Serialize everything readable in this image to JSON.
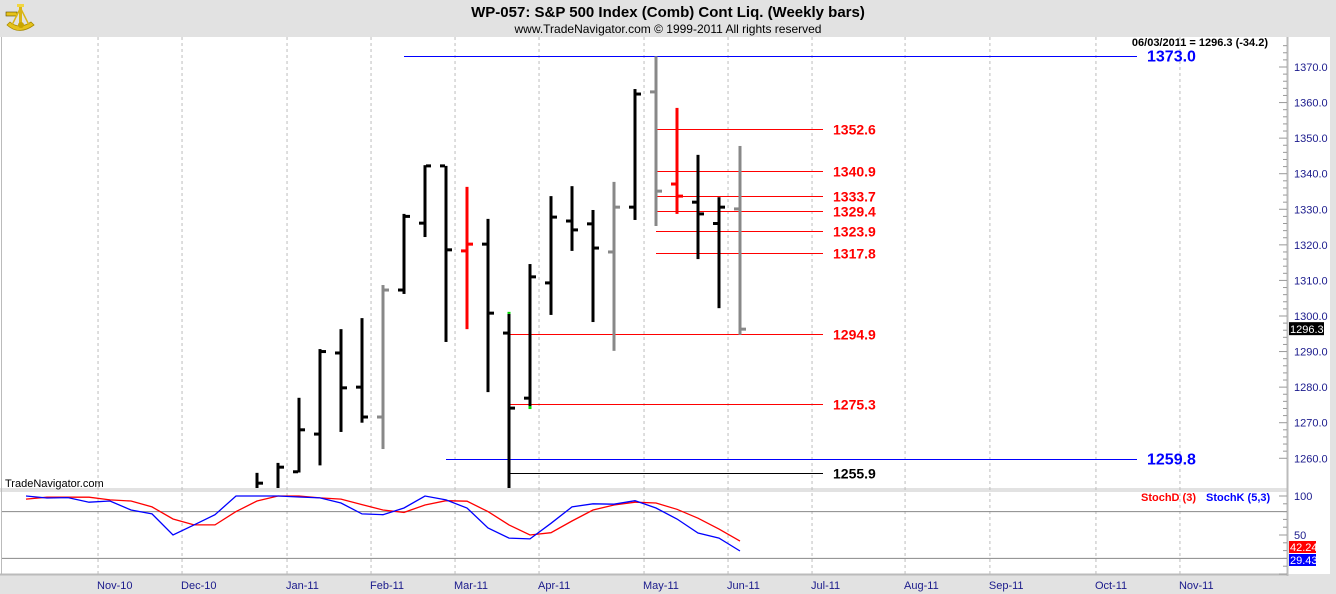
{
  "header": {
    "title": "WP-057:  S&P 500 Index (Comb) Cont Liq.  (Weekly bars)",
    "subtitle": "www.TradeNavigator.com © 1999-2011 All rights reserved",
    "info": "06/03/2011 = 1296.3 (-34.2)",
    "watermark": "TradeNavigator.com"
  },
  "colors": {
    "black": "#000000",
    "gray": "#888888",
    "red": "#ff0000",
    "blue": "#0000ff",
    "green": "#00dd00",
    "axis_text": "#1a1a8c",
    "panel_bg": "#e2e2e2"
  },
  "chart_data": [
    {
      "type": "ohlc",
      "title": "WP-057:  S&P 500 Index (Comb) Cont Liq.  (Weekly bars)",
      "x_unit": "week index",
      "ylim": [
        1249,
        1378
      ],
      "y_ticks": [
        "1370.0",
        "1360.0",
        "1350.0",
        "1340.0",
        "1330.0",
        "1320.0",
        "1310.0",
        "1300.0",
        "1290.0",
        "1280.0",
        "1270.0",
        "1260.0"
      ],
      "y_tick_values": [
        1370,
        1360,
        1350,
        1340,
        1330,
        1320,
        1310,
        1300,
        1290,
        1280,
        1270,
        1260
      ],
      "last_price": {
        "value": 1296.3,
        "label": "1296.3"
      },
      "x_ticks": [
        {
          "label": "Nov-10",
          "week": 3.43
        },
        {
          "label": "Dec-10",
          "week": 7.43
        },
        {
          "label": "Jan-11",
          "week": 12.43
        },
        {
          "label": "Feb-11",
          "week": 16.43
        },
        {
          "label": "Mar-11",
          "week": 20.43
        },
        {
          "label": "Apr-11",
          "week": 24.43
        },
        {
          "label": "May-11",
          "week": 29.43
        },
        {
          "label": "Jun-11",
          "week": 33.43
        },
        {
          "label": "Jul-11",
          "week": 37.43
        },
        {
          "label": "Aug-11",
          "week": 41.86
        },
        {
          "label": "Sep-11",
          "week": 45.9
        },
        {
          "label": "Oct-11",
          "week": 50.95
        },
        {
          "label": "Nov-11",
          "week": 54.95
        }
      ],
      "bars": [
        {
          "week": 11,
          "o": null,
          "h": 1255.9,
          "l": 1250,
          "c": 1253.0,
          "color": "black"
        },
        {
          "week": 12,
          "o": null,
          "h": 1258.7,
          "l": 1250,
          "c": 1257.5,
          "color": "black"
        },
        {
          "week": 13,
          "o": 1256.2,
          "h": 1277.0,
          "l": 1256.0,
          "c": 1268.0,
          "color": "black"
        },
        {
          "week": 14,
          "o": 1266.8,
          "h": 1290.7,
          "l": 1258.0,
          "c": 1290.0,
          "color": "black"
        },
        {
          "week": 15,
          "o": 1289.6,
          "h": 1296.3,
          "l": 1267.4,
          "c": 1279.8,
          "color": "black"
        },
        {
          "week": 16,
          "o": 1280.0,
          "h": 1299.4,
          "l": 1270.0,
          "c": 1271.6,
          "color": "black"
        },
        {
          "week": 17,
          "o": 1271.6,
          "h": 1308.7,
          "l": 1262.6,
          "c": 1307.3,
          "color": "gray"
        },
        {
          "week": 18,
          "o": 1307.3,
          "h": 1328.7,
          "l": 1306.2,
          "c": 1328.0,
          "color": "black"
        },
        {
          "week": 19,
          "o": 1326.1,
          "h": 1342.4,
          "l": 1322.2,
          "c": 1342.2,
          "color": "black"
        },
        {
          "week": 20,
          "o": 1342.2,
          "h": 1342.2,
          "l": 1292.7,
          "c": 1318.6,
          "color": "black"
        },
        {
          "week": 21,
          "o": 1318.3,
          "h": 1336.3,
          "l": 1296.3,
          "c": 1320.2,
          "color": "red"
        },
        {
          "week": 22,
          "o": 1320.2,
          "h": 1327.3,
          "l": 1278.6,
          "c": 1300.8,
          "color": "black"
        },
        {
          "week": 23,
          "o": 1295.2,
          "h": 1300.6,
          "l": 1251.6,
          "c": 1274.1,
          "color": "black",
          "marker": "high"
        },
        {
          "week": 24,
          "o": 1276.9,
          "h": 1314.6,
          "l": 1274.4,
          "c": 1311.0,
          "color": "black",
          "marker": "low"
        },
        {
          "week": 25,
          "o": 1309.3,
          "h": 1333.7,
          "l": 1300.3,
          "c": 1327.8,
          "color": "black"
        },
        {
          "week": 26,
          "o": 1326.7,
          "h": 1336.5,
          "l": 1318.3,
          "c": 1324.2,
          "color": "black"
        },
        {
          "week": 27,
          "o": 1325.9,
          "h": 1329.8,
          "l": 1298.3,
          "c": 1319.1,
          "color": "black"
        },
        {
          "week": 28,
          "o": 1318.0,
          "h": 1337.7,
          "l": 1290.2,
          "c": 1330.6,
          "color": "gray"
        },
        {
          "week": 29,
          "o": 1330.6,
          "h": 1363.8,
          "l": 1327.0,
          "c": 1362.4,
          "color": "black"
        },
        {
          "week": 30,
          "o": 1363.0,
          "h": 1373.0,
          "l": 1325.3,
          "c": 1335.1,
          "color": "gray"
        },
        {
          "week": 31,
          "o": 1337.1,
          "h": 1358.5,
          "l": 1328.7,
          "c": 1333.7,
          "color": "red"
        },
        {
          "week": 32,
          "o": 1332.0,
          "h": 1345.3,
          "l": 1316.0,
          "c": 1328.7,
          "color": "black"
        },
        {
          "week": 33,
          "o": 1326.0,
          "h": 1333.4,
          "l": 1302.2,
          "c": 1330.6,
          "color": "black"
        },
        {
          "week": 34,
          "o": 1330.1,
          "h": 1347.8,
          "l": 1294.7,
          "c": 1296.3,
          "color": "gray"
        }
      ],
      "levels": [
        {
          "value": 1373.0,
          "label": "1373.0",
          "color": "blue",
          "start_week": 18,
          "kind": "major"
        },
        {
          "value": 1352.6,
          "label": "1352.6",
          "color": "red",
          "start_week": 30,
          "kind": "minor"
        },
        {
          "value": 1340.9,
          "label": "1340.9",
          "color": "red",
          "start_week": 30,
          "kind": "minor"
        },
        {
          "value": 1333.7,
          "label": "1333.7",
          "color": "red",
          "start_week": 30,
          "kind": "minor"
        },
        {
          "value": 1329.4,
          "label": "1329.4",
          "color": "red",
          "start_week": 30,
          "kind": "minor"
        },
        {
          "value": 1323.9,
          "label": "1323.9",
          "color": "red",
          "start_week": 30,
          "kind": "minor"
        },
        {
          "value": 1317.8,
          "label": "1317.8",
          "color": "red",
          "start_week": 30,
          "kind": "minor"
        },
        {
          "value": 1294.9,
          "label": "1294.9",
          "color": "red",
          "start_week": 23,
          "kind": "minor"
        },
        {
          "value": 1275.3,
          "label": "1275.3",
          "color": "red",
          "start_week": 23,
          "kind": "minor"
        },
        {
          "value": 1259.8,
          "label": "1259.8",
          "color": "blue",
          "start_week": 20,
          "kind": "major"
        },
        {
          "value": 1255.9,
          "label": "1255.9",
          "color": "black",
          "start_week": 23,
          "kind": "minor"
        }
      ]
    },
    {
      "type": "line",
      "title": "Stochastic",
      "ylim": [
        0,
        100
      ],
      "y_ticks": [
        "100",
        "50"
      ],
      "y_tick_values": [
        100,
        50
      ],
      "guide_lines": [
        80,
        20
      ],
      "series": [
        {
          "name": "StochD (3)",
          "color": "red",
          "last_label": "42.24",
          "values": [
            96,
            98.5,
            98.5,
            98.5,
            95,
            93.6,
            86,
            70.5,
            63,
            63,
            80,
            93.6,
            100,
            100,
            97.5,
            96,
            89,
            82,
            79,
            88.5,
            94,
            93.3,
            80,
            63,
            50,
            53,
            68,
            82,
            88.5,
            92,
            91,
            83,
            71.6,
            57.5,
            42.24
          ]
        },
        {
          "name": "StochK (5,3)",
          "color": "blue",
          "last_label": "29.43",
          "values": [
            100,
            97.4,
            98,
            92,
            93.6,
            82,
            77,
            50,
            63,
            76,
            100,
            100,
            100,
            98.7,
            97.5,
            91,
            77,
            76,
            84.6,
            100,
            95,
            84.6,
            59,
            46,
            45,
            65,
            86,
            90,
            89.5,
            94,
            84.6,
            70.5,
            52.6,
            46,
            29.43
          ]
        }
      ]
    }
  ]
}
